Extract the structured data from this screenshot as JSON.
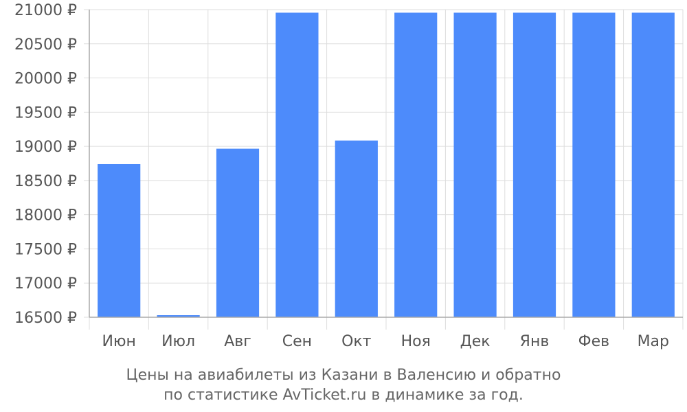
{
  "chart_data": {
    "type": "bar",
    "categories": [
      "Июн",
      "Июл",
      "Авг",
      "Сен",
      "Окт",
      "Ноя",
      "Дек",
      "Янв",
      "Фев",
      "Мар"
    ],
    "values": [
      18740,
      16530,
      18965,
      20955,
      19085,
      20955,
      20955,
      20955,
      20955,
      20955
    ],
    "ylim": [
      16500,
      21000
    ],
    "yticks": [
      16500,
      17000,
      17500,
      18000,
      18500,
      19000,
      19500,
      20000,
      20500,
      21000
    ],
    "ytick_suffix": " ₽",
    "bar_color": "#4d8bfb",
    "grid": true,
    "caption_line1": "Цены на авиабилеты из Казани в Валенсию и обратно",
    "caption_line2": "по статистике AvTicket.ru в динамике за год."
  }
}
